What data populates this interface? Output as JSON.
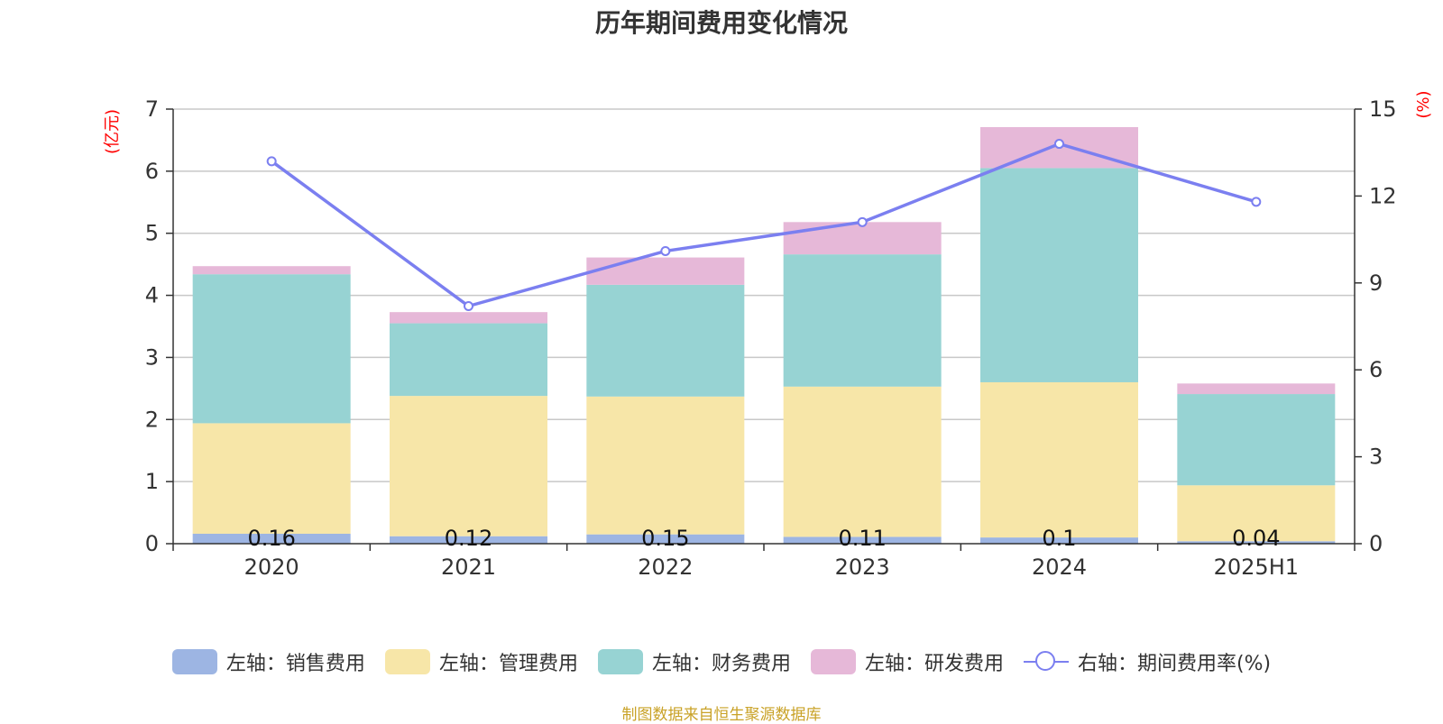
{
  "chart_data": {
    "type": "bar",
    "title": "历年期间费用变化情况",
    "left_axis_unit": "(亿元)",
    "right_axis_unit": "(%)",
    "categories": [
      "2020",
      "2021",
      "2022",
      "2023",
      "2024",
      "2025H1"
    ],
    "left_ylim": [
      0,
      7
    ],
    "left_ticks": [
      0,
      1,
      2,
      3,
      4,
      5,
      6,
      7
    ],
    "right_ylim": [
      0,
      15
    ],
    "right_ticks": [
      0,
      3,
      6,
      9,
      12,
      15
    ],
    "grid": true,
    "legend_position": "bottom",
    "series": [
      {
        "name": "左轴：销售费用",
        "type": "bar",
        "axis": "left",
        "color": "#9db5e3",
        "values": [
          0.16,
          0.12,
          0.15,
          0.11,
          0.1,
          0.04
        ],
        "labels": [
          "0.16",
          "0.12",
          "0.15",
          "0.11",
          "0.1",
          "0.04"
        ]
      },
      {
        "name": "左轴：管理费用",
        "type": "bar",
        "axis": "left",
        "color": "#f7e6a8",
        "values": [
          1.78,
          2.26,
          2.22,
          2.42,
          2.5,
          0.9
        ]
      },
      {
        "name": "左轴：财务费用",
        "type": "bar",
        "axis": "left",
        "color": "#97d3d3",
        "values": [
          2.4,
          1.17,
          1.8,
          2.13,
          3.45,
          1.47
        ]
      },
      {
        "name": "左轴：研发费用",
        "type": "bar",
        "axis": "left",
        "color": "#e6b8d8",
        "values": [
          0.13,
          0.18,
          0.44,
          0.52,
          0.66,
          0.17
        ]
      },
      {
        "name": "右轴：期间费用率(%)",
        "type": "line",
        "axis": "right",
        "color": "#7b7ff0",
        "values": [
          13.2,
          8.2,
          10.1,
          11.1,
          13.8,
          11.8
        ]
      }
    ]
  },
  "footer": "制图数据来自恒生聚源数据库"
}
